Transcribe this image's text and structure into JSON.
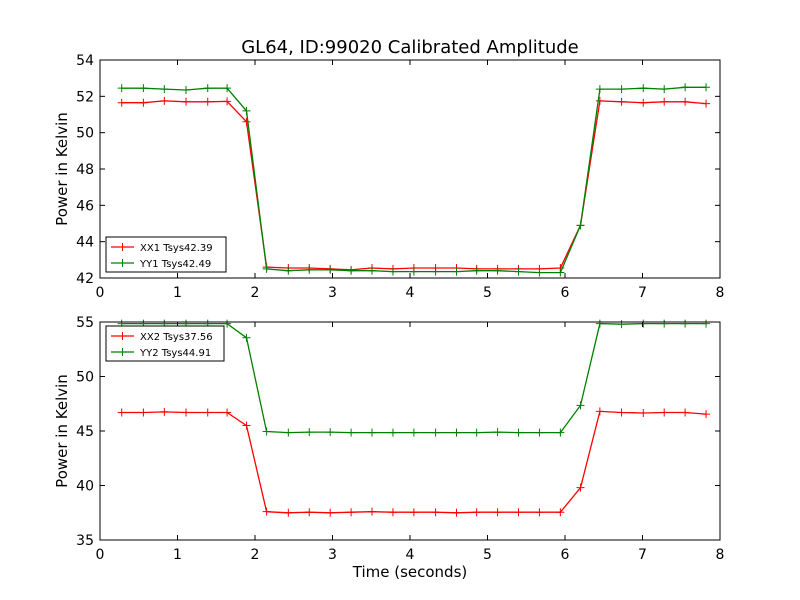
{
  "title": "GL64, ID:99020 Calibrated Amplitude",
  "chart_data": [
    {
      "type": "line",
      "ylabel": "Power in Kelvin",
      "xlabel": "",
      "xlim": [
        0,
        8
      ],
      "ylim": [
        42,
        54
      ],
      "xticks": [
        0,
        1,
        2,
        3,
        4,
        5,
        6,
        7,
        8
      ],
      "yticks": [
        42,
        44,
        46,
        48,
        50,
        52,
        54
      ],
      "legend_position": "lower-left",
      "x": [
        0.28,
        0.56,
        0.83,
        1.11,
        1.39,
        1.64,
        1.89,
        2.15,
        2.43,
        2.7,
        2.97,
        3.24,
        3.51,
        3.78,
        4.05,
        4.33,
        4.6,
        4.86,
        5.13,
        5.4,
        5.67,
        5.94,
        6.2,
        6.45,
        6.73,
        7.01,
        7.28,
        7.55,
        7.82
      ],
      "series": [
        {
          "name": "XX1 Tsys42.39",
          "color": "#ff0000",
          "values": [
            51.65,
            51.65,
            51.75,
            51.7,
            51.7,
            51.72,
            50.6,
            42.6,
            42.55,
            42.55,
            42.5,
            42.45,
            42.55,
            42.5,
            42.55,
            42.55,
            42.55,
            42.5,
            42.5,
            42.5,
            42.5,
            42.55,
            44.9,
            51.75,
            51.7,
            51.65,
            51.7,
            51.7,
            51.6
          ]
        },
        {
          "name": "YY1 Tsys42.49",
          "color": "#008000",
          "values": [
            52.45,
            52.45,
            52.4,
            52.35,
            52.45,
            52.45,
            51.2,
            42.5,
            42.4,
            42.45,
            42.45,
            42.4,
            42.4,
            42.35,
            42.35,
            42.35,
            42.35,
            42.4,
            42.4,
            42.35,
            42.3,
            42.3,
            44.9,
            52.4,
            52.4,
            52.45,
            52.4,
            52.5,
            52.5
          ]
        }
      ]
    },
    {
      "type": "line",
      "ylabel": "Power in Kelvin",
      "xlabel": "Time (seconds)",
      "xlim": [
        0,
        8
      ],
      "ylim": [
        35,
        55
      ],
      "xticks": [
        0,
        1,
        2,
        3,
        4,
        5,
        6,
        7,
        8
      ],
      "yticks": [
        35,
        40,
        45,
        50,
        55
      ],
      "legend_position": "upper-left",
      "x": [
        0.28,
        0.56,
        0.83,
        1.11,
        1.39,
        1.64,
        1.89,
        2.15,
        2.43,
        2.7,
        2.97,
        3.24,
        3.51,
        3.78,
        4.05,
        4.33,
        4.6,
        4.86,
        5.13,
        5.4,
        5.67,
        5.94,
        6.2,
        6.45,
        6.73,
        7.01,
        7.28,
        7.55,
        7.82
      ],
      "series": [
        {
          "name": "XX2 Tsys37.56",
          "color": "#ff0000",
          "values": [
            46.7,
            46.7,
            46.75,
            46.7,
            46.7,
            46.7,
            45.5,
            37.6,
            37.5,
            37.55,
            37.5,
            37.55,
            37.6,
            37.55,
            37.55,
            37.55,
            37.5,
            37.55,
            37.55,
            37.55,
            37.55,
            37.55,
            39.8,
            46.8,
            46.7,
            46.65,
            46.7,
            46.7,
            46.55
          ]
        },
        {
          "name": "YY2 Tsys44.91",
          "color": "#008000",
          "values": [
            54.85,
            54.85,
            54.85,
            54.85,
            54.85,
            54.85,
            53.55,
            44.95,
            44.85,
            44.9,
            44.9,
            44.85,
            44.85,
            44.85,
            44.85,
            44.85,
            44.85,
            44.85,
            44.9,
            44.85,
            44.85,
            44.85,
            47.35,
            54.85,
            54.8,
            54.85,
            54.85,
            54.85,
            54.85
          ]
        }
      ]
    }
  ]
}
